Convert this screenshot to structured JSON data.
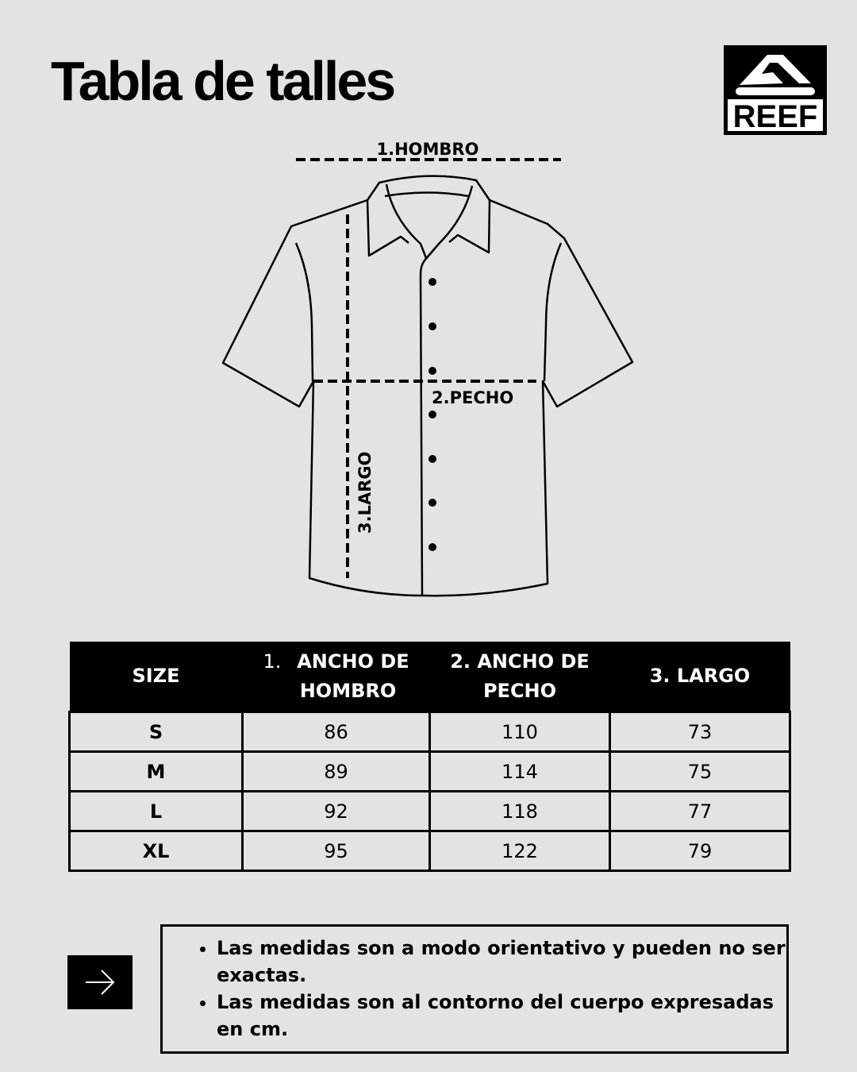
{
  "title": "Tabla de talles",
  "logo": {
    "text": "REEF",
    "icon": "reef-logo"
  },
  "diagram": {
    "labels": {
      "shoulder": "1.HOMBRO",
      "chest": "2.PECHO",
      "length": "3.LARGO"
    }
  },
  "table": {
    "headers": [
      {
        "num": "",
        "label": "SIZE"
      },
      {
        "num": "1.",
        "label": "ANCHO DE HOMBRO"
      },
      {
        "num": "",
        "label": "2. ANCHO DE PECHO"
      },
      {
        "num": "",
        "label": "3. LARGO"
      }
    ],
    "rows": [
      [
        "S",
        "86",
        "110",
        "73"
      ],
      [
        "M",
        "89",
        "114",
        "75"
      ],
      [
        "L",
        "92",
        "118",
        "77"
      ],
      [
        "XL",
        "95",
        "122",
        "79"
      ]
    ]
  },
  "notes": {
    "icon": "arrow-right-icon",
    "items": [
      "Las medidas son a modo orientativo y pueden no ser exactas.",
      "Las medidas son al contorno del cuerpo expresadas en cm."
    ]
  },
  "colors": {
    "background": "#e3e3e3",
    "ink": "#000000"
  }
}
